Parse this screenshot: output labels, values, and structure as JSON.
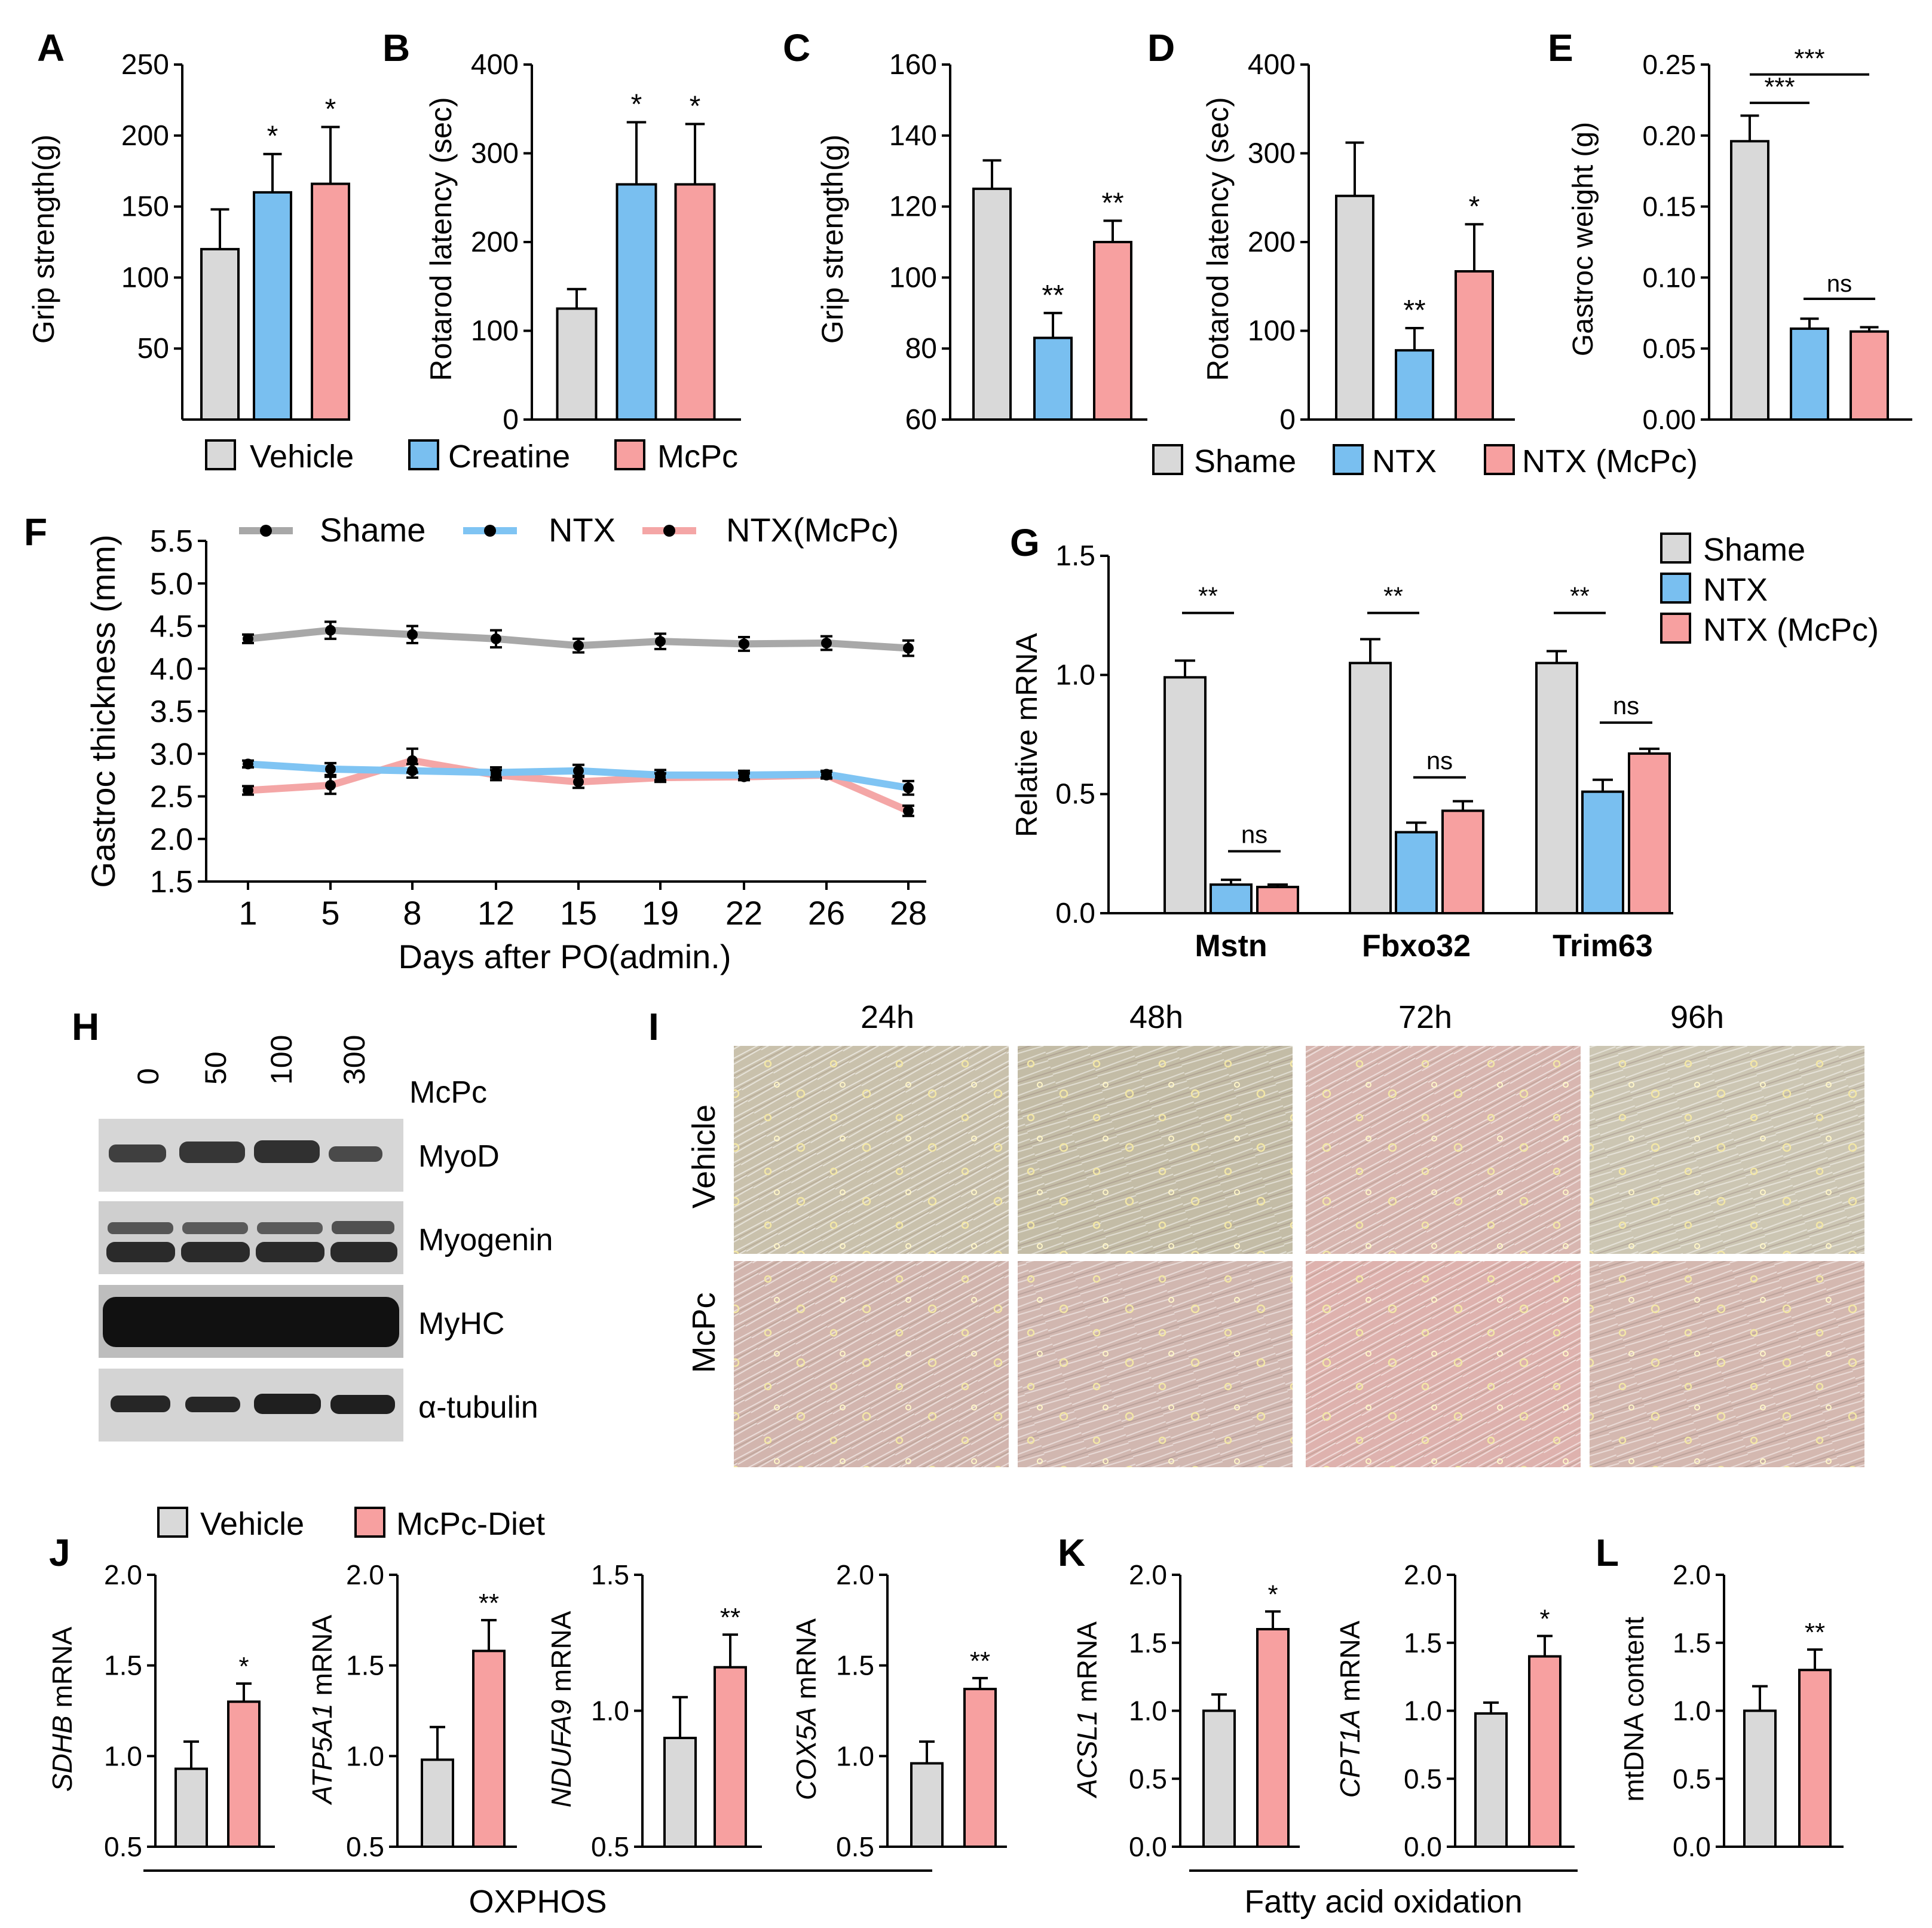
{
  "colors": {
    "gray": "#d9d9d9",
    "blue": "#79bff0",
    "pink": "#f7a0a0",
    "line_gray": "#a8a8a8",
    "line_blue": "#7fc4f3",
    "line_pink": "#f4a6a6"
  },
  "legends": {
    "abc": [
      "Vehicle",
      "Creatine",
      "McPc"
    ],
    "cde": [
      "Shame",
      "NTX",
      "NTX  (McPc)"
    ],
    "f": [
      "Shame",
      "NTX",
      "NTX(McPc)"
    ],
    "g": [
      "Shame",
      "NTX",
      "NTX  (McPc)"
    ],
    "j": [
      "Vehicle",
      "McPc-Diet"
    ]
  },
  "chart_data": [
    {
      "id": "A",
      "type": "bar",
      "categories": [
        "Vehicle",
        "Creatine",
        "McPc"
      ],
      "values": [
        120,
        160,
        166
      ],
      "errors": [
        28,
        27,
        40
      ],
      "sig": [
        "",
        "*",
        "*"
      ],
      "ylabel": "Grip strength(g)",
      "ylim": [
        0,
        250
      ],
      "ticks": [
        50,
        100,
        150,
        200,
        250
      ],
      "colors": [
        "gray",
        "blue",
        "pink"
      ]
    },
    {
      "id": "B",
      "type": "bar",
      "categories": [
        "Vehicle",
        "Creatine",
        "McPc"
      ],
      "values": [
        125,
        265,
        265
      ],
      "errors": [
        22,
        70,
        68
      ],
      "sig": [
        "",
        "*",
        "*"
      ],
      "ylabel": "Rotarod latency (sec)",
      "ylim": [
        0,
        400
      ],
      "ticks": [
        0,
        100,
        200,
        300,
        400
      ],
      "colors": [
        "gray",
        "blue",
        "pink"
      ]
    },
    {
      "id": "C",
      "type": "bar",
      "categories": [
        "Shame",
        "NTX",
        "NTX (McPc)"
      ],
      "values": [
        125,
        83,
        110
      ],
      "errors": [
        8,
        7,
        6
      ],
      "sig": [
        "",
        "**",
        "**"
      ],
      "ylabel": "Grip strength(g)",
      "ylim": [
        60,
        160
      ],
      "ticks": [
        60,
        80,
        100,
        120,
        140,
        160
      ],
      "colors": [
        "gray",
        "blue",
        "pink"
      ]
    },
    {
      "id": "D",
      "type": "bar",
      "categories": [
        "Shame",
        "NTX",
        "NTX (McPc)"
      ],
      "values": [
        252,
        78,
        167
      ],
      "errors": [
        60,
        25,
        53
      ],
      "sig": [
        "",
        "**",
        "*"
      ],
      "ylabel": "Rotarod latency (sec)",
      "ylim": [
        0,
        400
      ],
      "ticks": [
        0,
        100,
        200,
        300,
        400
      ],
      "colors": [
        "gray",
        "blue",
        "pink"
      ]
    },
    {
      "id": "E",
      "type": "bar",
      "categories": [
        "Shame",
        "NTX",
        "NTX (McPc)"
      ],
      "values": [
        0.196,
        0.064,
        0.062
      ],
      "errors": [
        0.018,
        0.007,
        0.003
      ],
      "sig": [
        "",
        "",
        ""
      ],
      "ylabel": "Gastroc weight (g)",
      "ylim": [
        0,
        0.25
      ],
      "ticks": [
        "0.00",
        "0.05",
        "0.10",
        "0.15",
        "0.20",
        "0.25"
      ],
      "colors": [
        "gray",
        "blue",
        "pink"
      ],
      "brackets": [
        {
          "from": 0,
          "to": 1,
          "label": "***"
        },
        {
          "from": 0,
          "to": 2,
          "label": "***"
        },
        {
          "from": 1,
          "to": 2,
          "label": "ns"
        }
      ]
    },
    {
      "id": "F",
      "type": "line",
      "x": [
        "1",
        "5",
        "8",
        "12",
        "15",
        "19",
        "22",
        "26",
        "28"
      ],
      "series": [
        {
          "name": "Shame",
          "values": [
            4.35,
            4.45,
            4.4,
            4.35,
            4.27,
            4.32,
            4.29,
            4.3,
            4.24
          ],
          "errors": [
            0.05,
            0.1,
            0.1,
            0.1,
            0.08,
            0.09,
            0.08,
            0.08,
            0.09
          ]
        },
        {
          "name": "NTX",
          "values": [
            2.88,
            2.82,
            2.8,
            2.78,
            2.8,
            2.75,
            2.75,
            2.76,
            2.6
          ],
          "errors": [
            0.04,
            0.07,
            0.08,
            0.06,
            0.07,
            0.06,
            0.05,
            0.04,
            0.08
          ]
        },
        {
          "name": "NTX(McPc)",
          "values": [
            2.57,
            2.63,
            2.92,
            2.75,
            2.67,
            2.72,
            2.73,
            2.75,
            2.33
          ],
          "errors": [
            0.05,
            0.1,
            0.14,
            0.06,
            0.07,
            0.05,
            0.04,
            0.04,
            0.06
          ]
        }
      ],
      "xlabel": "Days after PO(admin.)",
      "ylabel": "Gastroc thickness (mm)",
      "ylim": [
        1.5,
        5.5
      ],
      "ticks": [
        "1.5",
        "2.0",
        "2.5",
        "3.0",
        "3.5",
        "4.0",
        "4.5",
        "5.0",
        "5.5"
      ]
    },
    {
      "id": "G",
      "type": "bar",
      "categories": [
        "Mstn",
        "Fbxo32",
        "Trim63"
      ],
      "series": [
        {
          "name": "Shame",
          "values": [
            0.99,
            1.05,
            1.05
          ],
          "errors": [
            0.07,
            0.1,
            0.05
          ]
        },
        {
          "name": "NTX",
          "values": [
            0.12,
            0.34,
            0.51
          ],
          "errors": [
            0.02,
            0.04,
            0.05
          ]
        },
        {
          "name": "NTX  (McPc)",
          "values": [
            0.11,
            0.43,
            0.67
          ],
          "errors": [
            0.01,
            0.04,
            0.02
          ]
        }
      ],
      "brackets": [
        {
          "group": 0,
          "pair": [
            0,
            1
          ],
          "label": "**"
        },
        {
          "group": 1,
          "pair": [
            0,
            1
          ],
          "label": "**"
        },
        {
          "group": 2,
          "pair": [
            0,
            1
          ],
          "label": "**"
        },
        {
          "group": 0,
          "pair": [
            1,
            2
          ],
          "label": "ns"
        },
        {
          "group": 1,
          "pair": [
            1,
            2
          ],
          "label": "ns"
        },
        {
          "group": 2,
          "pair": [
            1,
            2
          ],
          "label": "ns"
        }
      ],
      "ylabel": "Relative mRNA",
      "ylim": [
        0,
        1.5
      ],
      "ticks": [
        "0.0",
        "0.5",
        "1.0",
        "1.5"
      ]
    },
    {
      "id": "J1",
      "type": "bar",
      "categories": [
        "Vehicle",
        "McPc-Diet"
      ],
      "values": [
        0.93,
        1.3
      ],
      "errors": [
        0.15,
        0.1
      ],
      "sig": [
        "",
        "*"
      ],
      "ylabel": "SDHB",
      "ylabel_suffix": " mRNA",
      "ylim": [
        0.5,
        2.0
      ],
      "ticks": [
        "0.5",
        "1.0",
        "1.5",
        "2.0"
      ]
    },
    {
      "id": "J2",
      "type": "bar",
      "categories": [
        "Vehicle",
        "McPc-Diet"
      ],
      "values": [
        0.98,
        1.58
      ],
      "errors": [
        0.18,
        0.17
      ],
      "sig": [
        "",
        "**"
      ],
      "ylabel": "ATP5A1",
      "ylabel_suffix": " mRNA",
      "ylim": [
        0.5,
        2.0
      ],
      "ticks": [
        "0.5",
        "1.0",
        "1.5",
        "2.0"
      ]
    },
    {
      "id": "J3",
      "type": "bar",
      "categories": [
        "Vehicle",
        "McPc-Diet"
      ],
      "values": [
        0.9,
        1.16
      ],
      "errors": [
        0.15,
        0.12
      ],
      "sig": [
        "",
        "**"
      ],
      "ylabel": "NDUFA9",
      "ylabel_suffix": " mRNA",
      "ylim": [
        0.5,
        1.5
      ],
      "ticks": [
        "0.5",
        "1.0",
        "1.5"
      ]
    },
    {
      "id": "J4",
      "type": "bar",
      "categories": [
        "Vehicle",
        "McPc-Diet"
      ],
      "values": [
        0.96,
        1.37
      ],
      "errors": [
        0.12,
        0.06
      ],
      "sig": [
        "",
        "**"
      ],
      "ylabel": "COX5A",
      "ylabel_suffix": " mRNA",
      "ylim": [
        0.5,
        2.0
      ],
      "ticks": [
        "0.5",
        "1.0",
        "1.5",
        "2.0"
      ]
    },
    {
      "id": "K1",
      "type": "bar",
      "categories": [
        "Vehicle",
        "McPc-Diet"
      ],
      "values": [
        1.0,
        1.6
      ],
      "errors": [
        0.12,
        0.13
      ],
      "sig": [
        "",
        "*"
      ],
      "ylabel": "ACSL1",
      "ylabel_suffix": " mRNA",
      "ylim": [
        0,
        2.0
      ],
      "ticks": [
        "0.0",
        "0.5",
        "1.0",
        "1.5",
        "2.0"
      ]
    },
    {
      "id": "K2",
      "type": "bar",
      "categories": [
        "Vehicle",
        "McPc-Diet"
      ],
      "values": [
        0.98,
        1.4
      ],
      "errors": [
        0.08,
        0.15
      ],
      "sig": [
        "",
        "*"
      ],
      "ylabel": "CPT1A",
      "ylabel_suffix": " mRNA",
      "ylim": [
        0,
        2.0
      ],
      "ticks": [
        "0.0",
        "0.5",
        "1.0",
        "1.5",
        "2.0"
      ]
    },
    {
      "id": "L",
      "type": "bar",
      "categories": [
        "Vehicle",
        "McPc-Diet"
      ],
      "values": [
        1.0,
        1.3
      ],
      "errors": [
        0.18,
        0.15
      ],
      "sig": [
        "",
        "**"
      ],
      "ylabel": "mtDNA content",
      "ylabel_suffix": "",
      "ylim": [
        0,
        2.0
      ],
      "ticks": [
        "0.0",
        "0.5",
        "1.0",
        "1.5",
        "2.0"
      ]
    }
  ],
  "panel_h": {
    "doses": [
      "0",
      "50",
      "100",
      "300"
    ],
    "dose_label": "McPc",
    "blots": [
      "MyoD",
      "Myogenin",
      "MyHC",
      "α-tubulin"
    ]
  },
  "panel_i": {
    "times": [
      "24h",
      "48h",
      "72h",
      "96h"
    ],
    "rows": [
      "Vehicle",
      "McPc"
    ]
  },
  "group_labels": {
    "oxphos": "OXPHOS",
    "fao": "Fatty acid oxidation"
  }
}
